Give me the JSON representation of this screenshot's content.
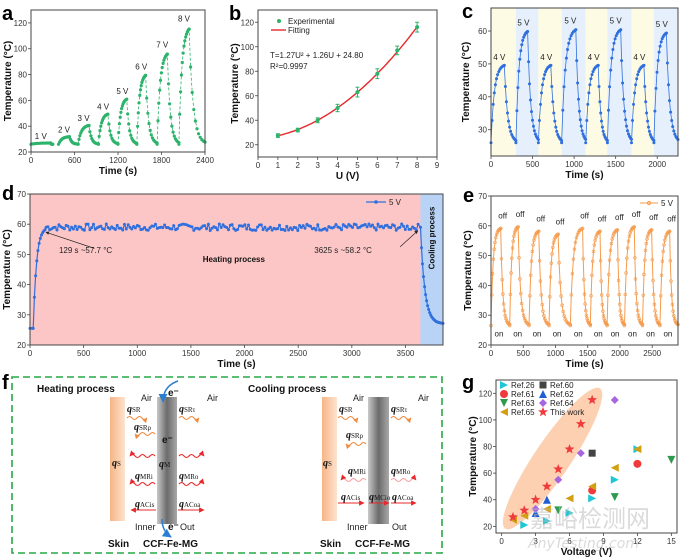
{
  "figure": {
    "panel_labels": [
      "a",
      "b",
      "c",
      "d",
      "e",
      "f",
      "g"
    ],
    "watermark": {
      "cn": "嘉峪检测网",
      "en": "AnyTesting.com"
    }
  },
  "chart_data": [
    {
      "id": "a",
      "type": "scatter",
      "title": "",
      "xlabel": "Time (s)",
      "ylabel": "Temperature (°C)",
      "xlim": [
        0,
        2400
      ],
      "ylim": [
        20,
        130
      ],
      "xticks": [
        0,
        600,
        1200,
        1800,
        2400
      ],
      "yticks": [
        20,
        40,
        60,
        80,
        100,
        120
      ],
      "color": "#2db36b",
      "ambient": 26,
      "steps": [
        {
          "label": "1 V",
          "on": 0,
          "off": 270,
          "end": 300,
          "peak": 27
        },
        {
          "label": "2 V",
          "on": 380,
          "off": 530,
          "end": 650,
          "peak": 32
        },
        {
          "label": "3 V",
          "on": 650,
          "off": 800,
          "end": 930,
          "peak": 41
        },
        {
          "label": "4 V",
          "on": 930,
          "off": 1060,
          "end": 1200,
          "peak": 50
        },
        {
          "label": "5 V",
          "on": 1200,
          "off": 1320,
          "end": 1460,
          "peak": 62
        },
        {
          "label": "6 V",
          "on": 1460,
          "off": 1580,
          "end": 1740,
          "peak": 81
        },
        {
          "label": "7 V",
          "on": 1740,
          "off": 1880,
          "end": 2040,
          "peak": 98
        },
        {
          "label": "8 V",
          "on": 2040,
          "off": 2180,
          "end": 2400,
          "peak": 118
        }
      ]
    },
    {
      "id": "b",
      "type": "scatter",
      "title": "",
      "xlabel": "U (V)",
      "ylabel": "Temperature (°C)",
      "xlim": [
        0,
        9
      ],
      "ylim": [
        10,
        130
      ],
      "xticks": [
        0,
        1,
        2,
        3,
        4,
        5,
        6,
        7,
        8,
        9
      ],
      "yticks": [
        20,
        40,
        60,
        80,
        100,
        120
      ],
      "legend": [
        {
          "name": "Experimental",
          "color": "#2db36b",
          "marker": "circle"
        },
        {
          "name": "Fitting",
          "color": "#e8282b",
          "marker": "line"
        }
      ],
      "legend_position": "top-left",
      "equation": "T=1.27U² + 1.26U + 24.80",
      "r2": "R²=0.9997",
      "fit": {
        "a": 1.27,
        "b": 1.26,
        "c": 24.8
      },
      "series": [
        {
          "name": "Experimental",
          "x": [
            1,
            2,
            3,
            4,
            5,
            6,
            7,
            8
          ],
          "y": [
            27.5,
            32,
            40,
            50,
            63,
            78,
            97,
            116
          ],
          "err": [
            1.5,
            1.5,
            2,
            3,
            4,
            4,
            3.5,
            4
          ]
        }
      ]
    },
    {
      "id": "c",
      "type": "scatter",
      "title": "",
      "xlabel": "Time (s)",
      "ylabel": "Temperature (°C)",
      "xlim": [
        0,
        2250
      ],
      "ylim": [
        22,
        67
      ],
      "xticks": [
        0,
        500,
        1000,
        1500,
        2000
      ],
      "yticks": [
        30,
        40,
        50,
        60
      ],
      "color": "#2f6fde",
      "ambient": 26,
      "band_colors": {
        "4 V": "#fdfbe3",
        "5 V": "#e6f0fc"
      },
      "cycles": [
        {
          "label": "4 V",
          "on": 0,
          "off": 160,
          "end": 300,
          "peak": 50
        },
        {
          "label": "5 V",
          "on": 300,
          "off": 440,
          "end": 570,
          "peak": 60.5
        },
        {
          "label": "4 V",
          "on": 570,
          "off": 720,
          "end": 850,
          "peak": 50
        },
        {
          "label": "5 V",
          "on": 850,
          "off": 1020,
          "end": 1140,
          "peak": 61
        },
        {
          "label": "4 V",
          "on": 1140,
          "off": 1290,
          "end": 1400,
          "peak": 50
        },
        {
          "label": "5 V",
          "on": 1400,
          "off": 1560,
          "end": 1690,
          "peak": 61
        },
        {
          "label": "4 V",
          "on": 1690,
          "off": 1840,
          "end": 1960,
          "peak": 50
        },
        {
          "label": "5 V",
          "on": 1960,
          "off": 2110,
          "end": 2250,
          "peak": 60
        }
      ]
    },
    {
      "id": "d",
      "type": "line",
      "title": "",
      "xlabel": "Time (s)",
      "ylabel": "Temperature (°C)",
      "xlim": [
        0,
        3850
      ],
      "ylim": [
        20,
        70
      ],
      "xticks": [
        0,
        500,
        1000,
        1500,
        2000,
        2500,
        3000,
        3500
      ],
      "yticks": [
        20,
        30,
        40,
        50,
        60,
        70
      ],
      "color": "#2f6fde",
      "legend": [
        {
          "name": "5 V",
          "color": "#2f6fde"
        }
      ],
      "legend_position": "top-right",
      "regions": [
        {
          "label": "Heating process",
          "from": 0,
          "to": 3640,
          "color": "#fdc6c6"
        },
        {
          "label": "Cooling process",
          "from": 3640,
          "to": 3850,
          "color": "#b9d3f7"
        }
      ],
      "annotations": [
        {
          "text": "129 s ~57.7 °C",
          "x": 129,
          "y": 57.7
        },
        {
          "text": "3625 s ~58.2 °C",
          "x": 3625,
          "y": 58.2
        }
      ],
      "steady": 59,
      "start": 25.5,
      "end_value": 27
    },
    {
      "id": "e",
      "type": "line",
      "title": "",
      "xlabel": "Time (s)",
      "ylabel": "Temperature (°C)",
      "xlim": [
        0,
        2900
      ],
      "ylim": [
        20,
        70
      ],
      "xticks": [
        0,
        500,
        1000,
        1500,
        2000,
        2500
      ],
      "yticks": [
        20,
        30,
        40,
        50,
        60,
        70
      ],
      "color": "#f59b4c",
      "legend": [
        {
          "name": "5 V",
          "color": "#f59b4c"
        }
      ],
      "legend_position": "top-right",
      "on_label": "on",
      "off_label": "off",
      "cycles": [
        {
          "on": 0,
          "off": 150,
          "peak": 59.5
        },
        {
          "on": 290,
          "off": 420,
          "peak": 60
        },
        {
          "on": 590,
          "off": 740,
          "peak": 58.5
        },
        {
          "on": 900,
          "off": 1040,
          "peak": 57.5
        },
        {
          "on": 1230,
          "off": 1420,
          "peak": 59.5
        },
        {
          "on": 1540,
          "off": 1690,
          "peak": 58.5
        },
        {
          "on": 1800,
          "off": 1960,
          "peak": 59
        },
        {
          "on": 2070,
          "off": 2220,
          "peak": 60
        },
        {
          "on": 2350,
          "off": 2490,
          "peak": 59
        },
        {
          "on": 2620,
          "off": 2770,
          "peak": 58.5
        }
      ],
      "low": 26.5
    },
    {
      "id": "g",
      "type": "scatter",
      "title": "",
      "xlabel": "Voltage (V)",
      "ylabel": "Temperature (°C)",
      "xlim": [
        -0.5,
        15.5
      ],
      "ylim": [
        15,
        130
      ],
      "xticks": [
        0,
        3,
        6,
        9,
        12,
        15
      ],
      "yticks": [
        20,
        40,
        60,
        80,
        100,
        120
      ],
      "legend_position": "top-left",
      "highlight_color": "#fbc8a3",
      "series": [
        {
          "name": "Ref.26",
          "color": "#1fc7d4",
          "marker": "triangle-right",
          "x": [
            2,
            4,
            6,
            8,
            10,
            12
          ],
          "y": [
            21,
            24,
            30,
            41,
            55,
            78
          ]
        },
        {
          "name": "Ref.60",
          "color": "#444444",
          "marker": "square",
          "x": [
            8
          ],
          "y": [
            75
          ]
        },
        {
          "name": "Ref.61",
          "color": "#ef3b3b",
          "marker": "circle",
          "x": [
            8,
            12
          ],
          "y": [
            47,
            67
          ]
        },
        {
          "name": "Ref.62",
          "color": "#1f5fd6",
          "marker": "triangle-up",
          "x": [
            3,
            4
          ],
          "y": [
            30,
            40
          ]
        },
        {
          "name": "Ref.63",
          "color": "#2d9a4e",
          "marker": "triangle-down",
          "x": [
            5,
            10,
            15
          ],
          "y": [
            32,
            42,
            70
          ]
        },
        {
          "name": "Ref.64",
          "color": "#a766e0",
          "marker": "diamond",
          "x": [
            3,
            5,
            7,
            10
          ],
          "y": [
            33,
            55,
            75,
            115
          ]
        },
        {
          "name": "Ref.65",
          "color": "#d2a010",
          "marker": "triangle-left",
          "x": [
            1,
            2,
            4,
            6,
            8,
            10,
            12
          ],
          "y": [
            25,
            28,
            33,
            41,
            50,
            64,
            78
          ]
        },
        {
          "name": "This work",
          "color": "#ef3b3b",
          "marker": "star",
          "x": [
            1,
            2,
            3,
            4,
            5,
            6,
            7,
            8
          ],
          "y": [
            27,
            32,
            40,
            50,
            63,
            78,
            97,
            115
          ]
        }
      ]
    }
  ],
  "diagram": {
    "heating": {
      "title": "Heating process",
      "air_left": "Air",
      "air_right": "Air",
      "inner": "Inner",
      "out": "Out",
      "skin": "Skin",
      "material": "CCF-Fe-MG",
      "electron": "e⁻",
      "qS": {
        "q": "q",
        "sub": "S"
      },
      "qSR": {
        "q": "q",
        "sub": "SR"
      },
      "qSRrho": {
        "q": "q",
        "sub": "SRρ"
      },
      "qSRtau": {
        "q": "q",
        "sub": "SRτ"
      },
      "qM": {
        "q": "q",
        "sub": "M"
      },
      "qMRi": {
        "q": "q",
        "sub": "MRi"
      },
      "qMRo": {
        "q": "q",
        "sub": "MRo"
      },
      "qACis": {
        "q": "q",
        "sub": "ACis"
      },
      "qACoa": {
        "q": "q",
        "sub": "ACoa"
      }
    },
    "cooling": {
      "title": "Cooling process",
      "air_left": "Air",
      "air_right": "Air",
      "inner": "Inner",
      "out": "Out",
      "skin": "Skin",
      "material": "CCF-Fe-MG",
      "qS": {
        "q": "q",
        "sub": "S"
      },
      "qSR": {
        "q": "q",
        "sub": "SR"
      },
      "qSRrho": {
        "q": "q",
        "sub": "SRρ"
      },
      "qSRtau": {
        "q": "q",
        "sub": "SRτ"
      },
      "qMRi": {
        "q": "q",
        "sub": "MRi"
      },
      "qMRo": {
        "q": "q",
        "sub": "MRo"
      },
      "qACis": {
        "q": "q",
        "sub": "ACis"
      },
      "qMCio": {
        "q": "q",
        "sub": "MCio"
      },
      "qACoa": {
        "q": "q",
        "sub": "ACoa"
      }
    }
  }
}
